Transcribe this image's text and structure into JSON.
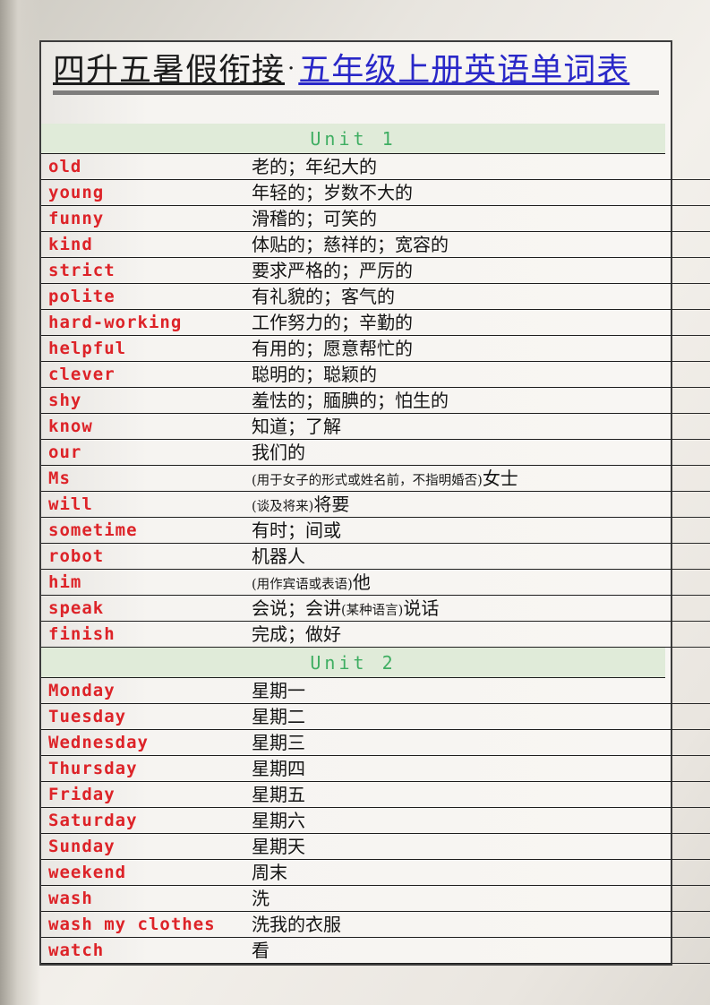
{
  "title": {
    "black": "四升五暑假衔接",
    "separator": "·",
    "blue": "五年级上册英语单词表"
  },
  "colors": {
    "word_red": "#dd2328",
    "title_blue": "#2a28c8",
    "unit_text_green": "#3fae62",
    "unit_band_green": "#e0ebd9",
    "title_rule_gray": "#7e7d7c"
  },
  "units": [
    {
      "label": "Unit 1",
      "words": [
        {
          "word": "old",
          "meaning": [
            {
              "t": "老的；年纪大的"
            }
          ]
        },
        {
          "word": "young",
          "meaning": [
            {
              "t": "年轻的；岁数不大的"
            }
          ]
        },
        {
          "word": "funny",
          "meaning": [
            {
              "t": "滑稽的；可笑的"
            }
          ]
        },
        {
          "word": "kind",
          "meaning": [
            {
              "t": "体贴的；慈祥的；宽容的"
            }
          ]
        },
        {
          "word": "strict",
          "meaning": [
            {
              "t": "要求严格的；严厉的"
            }
          ]
        },
        {
          "word": "polite",
          "meaning": [
            {
              "t": "有礼貌的；客气的"
            }
          ]
        },
        {
          "word": "hard-working",
          "meaning": [
            {
              "t": "工作努力的；辛勤的"
            }
          ]
        },
        {
          "word": "helpful",
          "meaning": [
            {
              "t": "有用的；愿意帮忙的"
            }
          ]
        },
        {
          "word": "clever",
          "meaning": [
            {
              "t": "聪明的；聪颖的"
            }
          ]
        },
        {
          "word": "shy",
          "meaning": [
            {
              "t": "羞怯的；腼腆的；怕生的"
            }
          ]
        },
        {
          "word": "know",
          "meaning": [
            {
              "t": "知道；了解"
            }
          ]
        },
        {
          "word": "our",
          "meaning": [
            {
              "t": "我们的"
            }
          ]
        },
        {
          "word": "Ms",
          "meaning": [
            {
              "t": "(用于女子的形式或姓名前，不指明婚否)",
              "s": true
            },
            {
              "t": "女士"
            }
          ]
        },
        {
          "word": "will",
          "meaning": [
            {
              "t": "(谈及将来)",
              "s": true
            },
            {
              "t": "将要"
            }
          ]
        },
        {
          "word": "sometime",
          "meaning": [
            {
              "t": "有时；间或"
            }
          ]
        },
        {
          "word": "robot",
          "meaning": [
            {
              "t": "机器人"
            }
          ]
        },
        {
          "word": "him",
          "meaning": [
            {
              "t": "(用作宾语或表语)",
              "s": true
            },
            {
              "t": "他"
            }
          ]
        },
        {
          "word": "speak",
          "meaning": [
            {
              "t": "会说；会讲"
            },
            {
              "t": "(某种语言)",
              "s": true
            },
            {
              "t": "说话"
            }
          ]
        },
        {
          "word": "finish",
          "meaning": [
            {
              "t": "完成；做好"
            }
          ]
        }
      ]
    },
    {
      "label": "Unit 2",
      "words": [
        {
          "word": "Monday",
          "meaning": [
            {
              "t": "星期一"
            }
          ]
        },
        {
          "word": "Tuesday",
          "meaning": [
            {
              "t": "星期二"
            }
          ]
        },
        {
          "word": "Wednesday",
          "meaning": [
            {
              "t": "星期三"
            }
          ]
        },
        {
          "word": "Thursday",
          "meaning": [
            {
              "t": "星期四"
            }
          ]
        },
        {
          "word": "Friday",
          "meaning": [
            {
              "t": "星期五"
            }
          ]
        },
        {
          "word": "Saturday",
          "meaning": [
            {
              "t": "星期六"
            }
          ]
        },
        {
          "word": "Sunday",
          "meaning": [
            {
              "t": "星期天"
            }
          ]
        },
        {
          "word": "weekend",
          "meaning": [
            {
              "t": "周末"
            }
          ]
        },
        {
          "word": "wash",
          "meaning": [
            {
              "t": "洗"
            }
          ]
        },
        {
          "word": "wash my clothes",
          "meaning": [
            {
              "t": "洗我的衣服"
            }
          ]
        },
        {
          "word": "watch",
          "meaning": [
            {
              "t": "看"
            }
          ]
        }
      ]
    }
  ]
}
